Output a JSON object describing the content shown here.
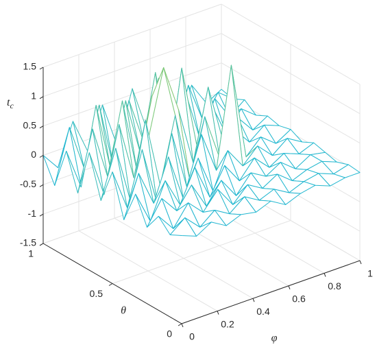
{
  "chart_data": {
    "type": "mesh",
    "xlabel": "φ",
    "ylabel": "θ",
    "zlabel": {
      "text": "t",
      "subscript": "c"
    },
    "x": [
      0,
      0.083,
      0.167,
      0.25,
      0.333,
      0.417,
      0.5,
      0.583,
      0.667,
      0.75,
      0.833,
      0.917,
      1
    ],
    "y": [
      0,
      0.083,
      0.167,
      0.25,
      0.333,
      0.417,
      0.5,
      0.583,
      0.667,
      0.75,
      0.833,
      0.917,
      1
    ],
    "z": [
      [
        0,
        -0.1,
        0.05,
        -0.1,
        0,
        -0.05,
        0.05,
        -0.1,
        0,
        0.05,
        -0.05,
        0,
        0
      ],
      [
        -0.1,
        0.1,
        -0.15,
        0.05,
        -0.1,
        0.1,
        -0.05,
        0.05,
        -0.1,
        0,
        0.05,
        -0.05,
        0.02
      ],
      [
        0.1,
        -0.2,
        0.15,
        -0.1,
        0.2,
        -0.15,
        0.1,
        -0.05,
        0.1,
        -0.1,
        0,
        0.05,
        -0.05
      ],
      [
        -0.2,
        0.2,
        -0.1,
        0.25,
        -0.2,
        0.15,
        -0.2,
        0.1,
        -0.05,
        0.1,
        -0.1,
        0.05,
        0
      ],
      [
        0.25,
        -0.3,
        0.3,
        -0.2,
        0.35,
        -0.25,
        0.2,
        -0.15,
        0.15,
        -0.1,
        0.05,
        -0.05,
        0.05
      ],
      [
        -0.3,
        0.4,
        -0.2,
        0.5,
        -0.3,
        0.3,
        -0.35,
        0.25,
        -0.1,
        0.15,
        -0.1,
        0.1,
        -0.05
      ],
      [
        0.4,
        -0.3,
        0.6,
        -0.4,
        0.7,
        -0.3,
        0.5,
        -0.2,
        1.5,
        -0.15,
        0.1,
        -0.1,
        0.05
      ],
      [
        -0.2,
        0.6,
        -0.4,
        0.9,
        -0.3,
        0.8,
        -0.4,
        0.6,
        -0.2,
        0.2,
        -0.1,
        0.1,
        0
      ],
      [
        0.5,
        -0.3,
        0.8,
        -0.2,
        0.4,
        1.5,
        0.7,
        -0.3,
        0.9,
        -0.1,
        0.2,
        -0.1,
        0.05
      ],
      [
        -0.3,
        0.7,
        -0.2,
        1.0,
        -0.3,
        0.9,
        -0.5,
        1.2,
        -0.2,
        0.4,
        -0.2,
        0.15,
        -0.05
      ],
      [
        0.3,
        -0.4,
        0.9,
        -0.3,
        0.8,
        -0.2,
        1.1,
        -0.3,
        0.6,
        -0.3,
        0.3,
        -0.1,
        0.1
      ],
      [
        -0.4,
        0.5,
        -0.3,
        0.7,
        -0.5,
        0.6,
        -0.2,
        0.8,
        -0.4,
        0.5,
        -0.2,
        0.2,
        0
      ],
      [
        0,
        -0.3,
        0.4,
        -0.2,
        0.5,
        -0.3,
        0.6,
        -0.2,
        0.4,
        -0.3,
        0.3,
        -0.1,
        0.05
      ]
    ],
    "xlim": [
      0,
      1
    ],
    "xticks": [
      0,
      0.2,
      0.4,
      0.6,
      0.8,
      1
    ],
    "ylim": [
      0,
      1
    ],
    "yticks": [
      0,
      0.5,
      1
    ],
    "zlim": [
      -1.5,
      1.5
    ],
    "zticks": [
      -1.5,
      -1,
      -0.5,
      0,
      0.5,
      1,
      1.5
    ],
    "grid": true,
    "colormap": "parula",
    "face_color": "#ffffff"
  }
}
